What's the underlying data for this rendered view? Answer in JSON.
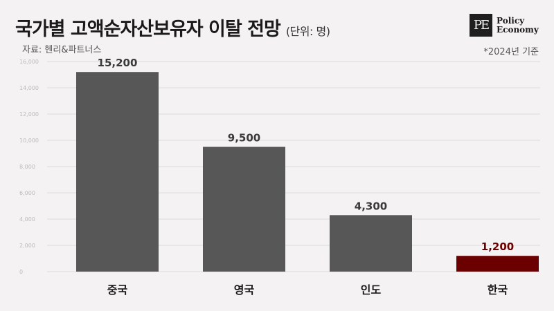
{
  "header": {
    "title": "국가별 고액순자산보유자 이탈 전망",
    "unit": "(단위: 명)",
    "source": "자료: 헨리&파트너스",
    "basis": "*2024년 기준"
  },
  "logo": {
    "mark": "PE",
    "line1": "Policy",
    "line2": "Economy"
  },
  "colors": {
    "bar": "#575757",
    "highlight": "#6b0000",
    "value_label": "#3a3a3a",
    "grid": "#dcdcdc"
  },
  "chart_data": {
    "type": "bar",
    "title": "국가별 고액순자산보유자 이탈 전망",
    "ylabel": "",
    "xlabel": "",
    "categories": [
      "중국",
      "영국",
      "인도",
      "한국"
    ],
    "values": [
      15200,
      9500,
      4300,
      1200
    ],
    "value_labels": [
      "15,200",
      "9,500",
      "4,300",
      "1,200"
    ],
    "highlight_index": 3,
    "ylim": [
      0,
      16000
    ],
    "yticks": [
      0,
      2000,
      4000,
      6000,
      8000,
      10000,
      12000,
      14000,
      16000
    ],
    "ytick_labels": [
      "0",
      "2,000",
      "4,000",
      "6,000",
      "8,000",
      "10,000",
      "12,000",
      "14,000",
      "16,000"
    ],
    "grid": true,
    "legend": "none"
  }
}
